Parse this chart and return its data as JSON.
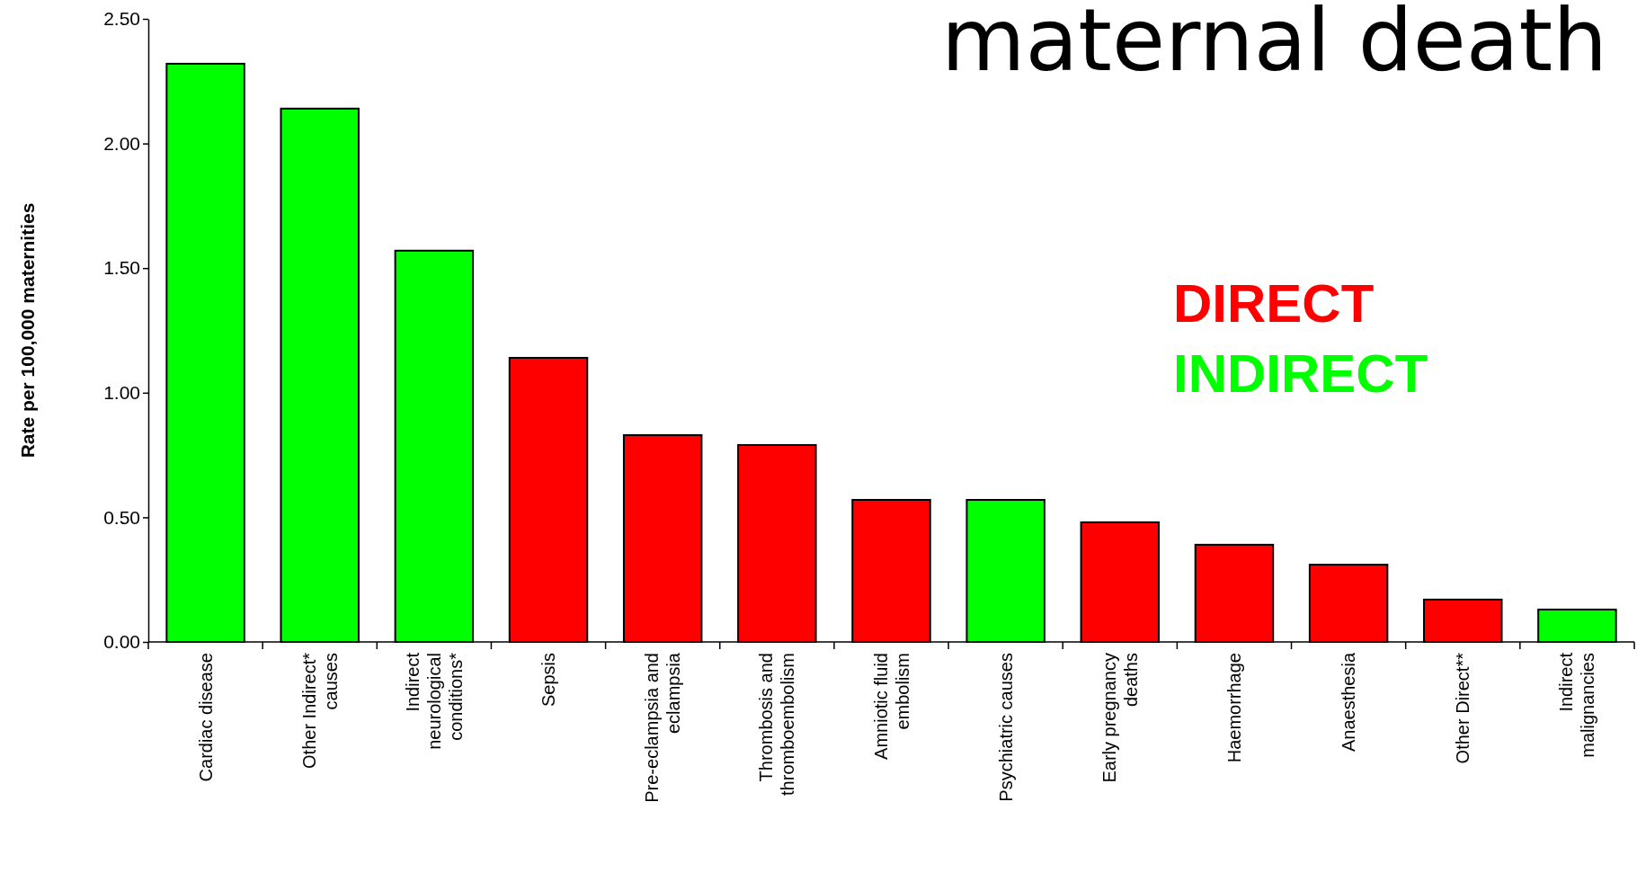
{
  "chart_data": {
    "type": "bar",
    "title": "maternal death",
    "ylabel": "Rate per 100,000 maternities",
    "categories": [
      "Cardiac disease",
      "Other Indirect* causes",
      "Indirect neurological conditions*",
      "Sepsis",
      "Pre-eclampsia and eclampsia",
      "Thrombosis and thromboembolism",
      "Amniotic fluid embolism",
      "Psychiatric causes",
      "Early pregnancy deaths",
      "Haemorrhage",
      "Anaesthesia",
      "Other Direct**",
      "Indirect malignancies"
    ],
    "series": [
      {
        "name": "DIRECT",
        "color": "#ff0000",
        "values": [
          null,
          null,
          null,
          1.14,
          0.83,
          0.79,
          0.57,
          null,
          0.48,
          0.39,
          0.31,
          0.17,
          null
        ]
      },
      {
        "name": "INDIRECT",
        "color": "#00ff00",
        "values": [
          2.32,
          2.14,
          1.57,
          null,
          null,
          null,
          null,
          0.57,
          null,
          null,
          null,
          null,
          0.13
        ]
      }
    ],
    "ylim": [
      0,
      2.5
    ],
    "yticks": [
      {
        "value": 0,
        "label": "0.00"
      },
      {
        "value": 0.5,
        "label": "0.50"
      },
      {
        "value": 1,
        "label": "1.00"
      },
      {
        "value": 1.5,
        "label": "1.50"
      },
      {
        "value": 2,
        "label": "2.00"
      },
      {
        "value": 2.5,
        "label": "2.50"
      }
    ],
    "legend": "right",
    "grid": false
  }
}
